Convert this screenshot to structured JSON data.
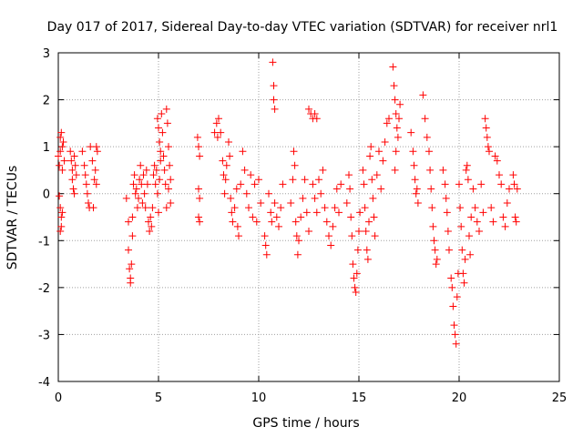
{
  "chart_data": {
    "type": "scatter",
    "title": "Day 017 of 2017, Sidereal Day-to-day VTEC variation (SDTVAR) for receiver nrl1",
    "xlabel": "GPS time / hours",
    "ylabel": "SDTVAR / TECUs",
    "xlim": [
      0,
      25
    ],
    "ylim": [
      -4,
      3
    ],
    "xticks": [
      "0",
      "5",
      "10",
      "15",
      "20",
      "25"
    ],
    "yticks": [
      "-4",
      "-3",
      "-2",
      "-1",
      "0",
      "1",
      "2",
      "3"
    ],
    "grid": true,
    "marker": "+",
    "series_color": "#ff0000",
    "series": [
      {
        "name": "SDTVAR",
        "points": [
          [
            0.0,
            0.8
          ],
          [
            0.05,
            0.6
          ],
          [
            0.1,
            1.2
          ],
          [
            0.1,
            0.9
          ],
          [
            0.15,
            1.3
          ],
          [
            0.2,
            1.0
          ],
          [
            0.2,
            0.5
          ],
          [
            0.25,
            1.1
          ],
          [
            0.3,
            0.7
          ],
          [
            0.05,
            -0.05
          ],
          [
            0.1,
            -0.3
          ],
          [
            0.15,
            -0.5
          ],
          [
            0.1,
            -0.8
          ],
          [
            0.15,
            -0.7
          ],
          [
            0.2,
            -0.4
          ],
          [
            0.6,
            0.9
          ],
          [
            0.65,
            0.7
          ],
          [
            0.7,
            0.5
          ],
          [
            0.7,
            0.3
          ],
          [
            0.75,
            0.1
          ],
          [
            0.8,
            0.0
          ],
          [
            0.8,
            0.8
          ],
          [
            0.85,
            0.6
          ],
          [
            0.9,
            0.4
          ],
          [
            1.2,
            0.9
          ],
          [
            1.3,
            0.6
          ],
          [
            1.35,
            0.4
          ],
          [
            1.4,
            0.2
          ],
          [
            1.45,
            0.0
          ],
          [
            1.5,
            -0.2
          ],
          [
            1.55,
            -0.3
          ],
          [
            1.6,
            1.0
          ],
          [
            1.7,
            0.7
          ],
          [
            1.75,
            -0.3
          ],
          [
            1.8,
            0.3
          ],
          [
            1.9,
            1.0
          ],
          [
            1.85,
            0.5
          ],
          [
            1.9,
            0.2
          ],
          [
            1.95,
            0.9
          ],
          [
            3.4,
            -0.1
          ],
          [
            3.5,
            -0.6
          ],
          [
            3.5,
            -1.2
          ],
          [
            3.55,
            -1.6
          ],
          [
            3.6,
            -1.9
          ],
          [
            3.6,
            -1.8
          ],
          [
            3.65,
            -1.5
          ],
          [
            3.7,
            -0.9
          ],
          [
            3.7,
            -0.5
          ],
          [
            3.75,
            0.2
          ],
          [
            3.8,
            0.4
          ],
          [
            3.85,
            0.0
          ],
          [
            3.9,
            0.1
          ],
          [
            3.95,
            -0.3
          ],
          [
            4.0,
            -0.1
          ],
          [
            4.05,
            0.3
          ],
          [
            4.1,
            0.6
          ],
          [
            4.15,
            0.2
          ],
          [
            4.2,
            -0.2
          ],
          [
            4.25,
            0.4
          ],
          [
            4.3,
            0.0
          ],
          [
            4.35,
            -0.3
          ],
          [
            4.4,
            0.5
          ],
          [
            4.45,
            0.2
          ],
          [
            4.5,
            -0.6
          ],
          [
            4.55,
            -0.8
          ],
          [
            4.6,
            -0.5
          ],
          [
            4.65,
            -0.7
          ],
          [
            4.7,
            -0.3
          ],
          [
            4.75,
            0.4
          ],
          [
            4.8,
            0.6
          ],
          [
            4.85,
            0.2
          ],
          [
            4.9,
            0.5
          ],
          [
            4.95,
            0.0
          ],
          [
            5.0,
            -0.4
          ],
          [
            5.05,
            0.3
          ],
          [
            5.1,
            0.7
          ],
          [
            4.95,
            1.6
          ],
          [
            5.0,
            1.4
          ],
          [
            5.05,
            1.1
          ],
          [
            5.1,
            0.9
          ],
          [
            5.15,
            1.7
          ],
          [
            5.2,
            1.3
          ],
          [
            5.25,
            0.8
          ],
          [
            5.3,
            0.5
          ],
          [
            5.35,
            0.2
          ],
          [
            5.4,
            1.8
          ],
          [
            5.45,
            1.5
          ],
          [
            5.5,
            1.0
          ],
          [
            5.55,
            0.6
          ],
          [
            5.6,
            0.3
          ],
          [
            5.6,
            -0.2
          ],
          [
            5.4,
            -0.3
          ],
          [
            5.5,
            0.1
          ],
          [
            6.95,
            1.2
          ],
          [
            7.0,
            1.0
          ],
          [
            7.05,
            0.8
          ],
          [
            7.0,
            0.1
          ],
          [
            7.05,
            -0.1
          ],
          [
            7.0,
            -0.5
          ],
          [
            7.05,
            -0.6
          ],
          [
            7.8,
            1.3
          ],
          [
            7.9,
            1.5
          ],
          [
            7.95,
            1.2
          ],
          [
            8.0,
            1.6
          ],
          [
            8.1,
            1.3
          ],
          [
            8.2,
            0.7
          ],
          [
            8.25,
            0.4
          ],
          [
            8.3,
            0.0
          ],
          [
            8.35,
            0.3
          ],
          [
            8.4,
            0.6
          ],
          [
            8.5,
            1.1
          ],
          [
            8.55,
            0.8
          ],
          [
            8.6,
            -0.1
          ],
          [
            8.65,
            -0.4
          ],
          [
            8.7,
            -0.6
          ],
          [
            8.8,
            -0.3
          ],
          [
            8.9,
            0.1
          ],
          [
            8.95,
            -0.7
          ],
          [
            9.0,
            -0.9
          ],
          [
            9.1,
            0.2
          ],
          [
            9.2,
            0.9
          ],
          [
            9.3,
            0.5
          ],
          [
            9.4,
            0.0
          ],
          [
            9.5,
            -0.3
          ],
          [
            9.6,
            0.4
          ],
          [
            9.7,
            -0.5
          ],
          [
            9.8,
            0.2
          ],
          [
            9.9,
            -0.6
          ],
          [
            10.0,
            0.3
          ],
          [
            10.1,
            -0.2
          ],
          [
            10.3,
            -0.9
          ],
          [
            10.35,
            -1.1
          ],
          [
            10.4,
            -1.3
          ],
          [
            10.5,
            0.0
          ],
          [
            10.6,
            -0.4
          ],
          [
            10.65,
            -0.6
          ],
          [
            10.7,
            2.8
          ],
          [
            10.75,
            2.3
          ],
          [
            10.75,
            2.0
          ],
          [
            10.8,
            1.8
          ],
          [
            10.8,
            -0.2
          ],
          [
            10.9,
            -0.5
          ],
          [
            11.0,
            -0.7
          ],
          [
            11.1,
            -0.3
          ],
          [
            11.2,
            0.2
          ],
          [
            11.6,
            -0.2
          ],
          [
            11.7,
            0.3
          ],
          [
            11.75,
            0.9
          ],
          [
            11.8,
            0.6
          ],
          [
            11.85,
            -0.6
          ],
          [
            11.9,
            -0.9
          ],
          [
            11.95,
            -1.3
          ],
          [
            12.0,
            -1.0
          ],
          [
            12.1,
            -0.5
          ],
          [
            12.2,
            -0.1
          ],
          [
            12.3,
            0.3
          ],
          [
            12.4,
            -0.4
          ],
          [
            12.5,
            -0.8
          ],
          [
            12.5,
            1.8
          ],
          [
            12.6,
            1.7
          ],
          [
            12.7,
            1.6
          ],
          [
            12.8,
            1.7
          ],
          [
            12.9,
            1.6
          ],
          [
            12.7,
            0.2
          ],
          [
            12.8,
            -0.1
          ],
          [
            12.9,
            -0.4
          ],
          [
            13.0,
            0.3
          ],
          [
            13.1,
            0.0
          ],
          [
            13.2,
            0.5
          ],
          [
            13.3,
            -0.3
          ],
          [
            13.4,
            -0.6
          ],
          [
            13.5,
            -0.9
          ],
          [
            13.6,
            -1.1
          ],
          [
            13.7,
            -0.7
          ],
          [
            13.8,
            -0.3
          ],
          [
            13.9,
            0.1
          ],
          [
            14.0,
            -0.4
          ],
          [
            14.1,
            0.2
          ],
          [
            14.4,
            -0.2
          ],
          [
            14.5,
            0.4
          ],
          [
            14.55,
            0.1
          ],
          [
            14.6,
            -0.5
          ],
          [
            14.65,
            -0.9
          ],
          [
            14.7,
            -1.5
          ],
          [
            14.75,
            -1.8
          ],
          [
            14.8,
            -2.0
          ],
          [
            14.85,
            -2.1
          ],
          [
            14.9,
            -1.7
          ],
          [
            14.95,
            -1.2
          ],
          [
            15.0,
            -0.8
          ],
          [
            15.05,
            -0.4
          ],
          [
            15.2,
            0.5
          ],
          [
            15.25,
            0.2
          ],
          [
            15.3,
            -0.3
          ],
          [
            15.35,
            -0.8
          ],
          [
            15.4,
            -1.2
          ],
          [
            15.45,
            -1.4
          ],
          [
            15.5,
            -0.6
          ],
          [
            15.55,
            0.8
          ],
          [
            15.6,
            1.0
          ],
          [
            15.65,
            0.3
          ],
          [
            15.7,
            -0.1
          ],
          [
            15.75,
            -0.5
          ],
          [
            15.8,
            -0.9
          ],
          [
            15.9,
            0.4
          ],
          [
            16.0,
            0.9
          ],
          [
            16.1,
            0.1
          ],
          [
            16.2,
            0.7
          ],
          [
            16.3,
            1.1
          ],
          [
            16.4,
            1.5
          ],
          [
            16.5,
            1.6
          ],
          [
            16.7,
            2.7
          ],
          [
            16.75,
            2.3
          ],
          [
            16.8,
            2.0
          ],
          [
            16.85,
            1.7
          ],
          [
            16.9,
            1.4
          ],
          [
            16.95,
            1.2
          ],
          [
            17.0,
            1.6
          ],
          [
            17.05,
            1.9
          ],
          [
            16.85,
            0.9
          ],
          [
            16.8,
            0.5
          ],
          [
            17.6,
            1.3
          ],
          [
            17.7,
            0.9
          ],
          [
            17.75,
            0.6
          ],
          [
            17.8,
            0.3
          ],
          [
            17.85,
            0.0
          ],
          [
            17.9,
            0.1
          ],
          [
            17.95,
            -0.2
          ],
          [
            18.2,
            2.1
          ],
          [
            18.3,
            1.6
          ],
          [
            18.4,
            1.2
          ],
          [
            18.5,
            0.9
          ],
          [
            18.55,
            0.5
          ],
          [
            18.6,
            0.1
          ],
          [
            18.65,
            -0.3
          ],
          [
            18.7,
            -0.7
          ],
          [
            18.75,
            -1.0
          ],
          [
            18.8,
            -1.2
          ],
          [
            18.85,
            -1.5
          ],
          [
            18.9,
            -1.4
          ],
          [
            19.2,
            0.5
          ],
          [
            19.3,
            0.2
          ],
          [
            19.35,
            -0.1
          ],
          [
            19.4,
            -0.4
          ],
          [
            19.45,
            -0.8
          ],
          [
            19.5,
            -1.2
          ],
          [
            19.6,
            -1.8
          ],
          [
            19.65,
            -2.0
          ],
          [
            19.7,
            -2.4
          ],
          [
            19.75,
            -2.8
          ],
          [
            19.8,
            -3.0
          ],
          [
            19.85,
            -3.2
          ],
          [
            19.9,
            -2.2
          ],
          [
            19.95,
            -1.7
          ],
          [
            20.0,
            0.2
          ],
          [
            20.05,
            -0.3
          ],
          [
            20.1,
            -0.7
          ],
          [
            20.15,
            -1.2
          ],
          [
            20.2,
            -1.7
          ],
          [
            20.25,
            -1.9
          ],
          [
            20.3,
            -1.4
          ],
          [
            20.35,
            0.5
          ],
          [
            20.4,
            0.6
          ],
          [
            20.45,
            0.3
          ],
          [
            20.5,
            -0.9
          ],
          [
            20.55,
            -1.3
          ],
          [
            20.6,
            -0.5
          ],
          [
            20.7,
            0.1
          ],
          [
            20.8,
            -0.3
          ],
          [
            20.9,
            -0.6
          ],
          [
            21.0,
            -0.8
          ],
          [
            21.1,
            0.2
          ],
          [
            21.2,
            -0.4
          ],
          [
            21.3,
            1.6
          ],
          [
            21.35,
            1.4
          ],
          [
            21.4,
            1.2
          ],
          [
            21.45,
            1.0
          ],
          [
            21.5,
            0.9
          ],
          [
            21.6,
            -0.3
          ],
          [
            21.7,
            -0.6
          ],
          [
            21.8,
            0.8
          ],
          [
            21.9,
            0.7
          ],
          [
            22.0,
            0.4
          ],
          [
            22.1,
            0.2
          ],
          [
            22.2,
            -0.5
          ],
          [
            22.3,
            -0.7
          ],
          [
            22.4,
            -0.2
          ],
          [
            22.5,
            0.1
          ],
          [
            22.7,
            0.4
          ],
          [
            22.75,
            0.2
          ],
          [
            22.8,
            -0.5
          ],
          [
            22.85,
            -0.6
          ],
          [
            22.9,
            0.1
          ]
        ]
      }
    ]
  }
}
